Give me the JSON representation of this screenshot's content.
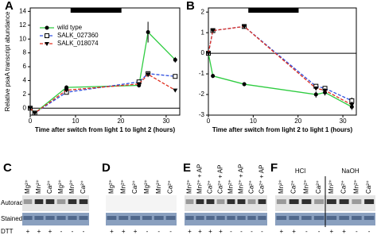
{
  "chart_data": [
    {
      "type": "line",
      "panel": "A",
      "ylabel": "Relative psaA transcript abundance",
      "xlabel": "Time after switch from light 1 to light 2 (hours)",
      "x": [
        0,
        1,
        8,
        24,
        26,
        32
      ],
      "xlim": [
        0,
        33
      ],
      "xticks": [
        0,
        10,
        20,
        30
      ],
      "ylim": [
        -1,
        14.5
      ],
      "yticks": [
        0,
        2,
        4,
        6,
        8,
        10,
        12,
        14
      ],
      "series": [
        {
          "name": "wild type",
          "color": "#2ecc40",
          "marker": "circle",
          "values": [
            0,
            -0.7,
            3,
            3.3,
            11,
            7
          ],
          "errors": [
            0.1,
            0.2,
            0.3,
            0.3,
            1.5,
            0.4
          ]
        },
        {
          "name": "SALK_027360",
          "color": "#3050e0",
          "marker": "square-open",
          "values": [
            0,
            -0.7,
            2.3,
            3.8,
            5,
            4.6
          ],
          "errors": [
            0.1,
            0.2,
            0.2,
            0.3,
            0.3,
            0.3
          ]
        },
        {
          "name": "SALK_018074",
          "color": "#e03020",
          "marker": "triangle",
          "values": [
            0,
            -0.7,
            2.6,
            3.5,
            4.9,
            2.6
          ],
          "errors": [
            0.1,
            0.2,
            0.2,
            0.3,
            0.4,
            0.2
          ]
        }
      ]
    },
    {
      "type": "line",
      "panel": "B",
      "xlabel": "Time after switch from light 2 to light 1 (hours)",
      "x": [
        0,
        1,
        8,
        24,
        26,
        32
      ],
      "xlim": [
        0,
        33
      ],
      "xticks": [
        0,
        10,
        20,
        30
      ],
      "ylim": [
        -3,
        2.2
      ],
      "yticks": [
        -3,
        -2,
        -1,
        0,
        1,
        2
      ],
      "series": [
        {
          "color": "#2ecc40",
          "marker": "circle",
          "values": [
            0,
            -1.1,
            -1.5,
            -2.0,
            -1.9,
            -2.6
          ],
          "errors": [
            0.05,
            0.1,
            0.1,
            0.15,
            0.15,
            0.15
          ]
        },
        {
          "color": "#3050e0",
          "marker": "square-open",
          "values": [
            0,
            1.1,
            1.3,
            -1.6,
            -1.7,
            -2.3
          ],
          "errors": [
            0.05,
            0.1,
            0.1,
            0.1,
            0.1,
            0.15
          ]
        },
        {
          "color": "#e03020",
          "marker": "triangle",
          "values": [
            0,
            1.1,
            1.3,
            -1.7,
            -1.8,
            -2.5
          ],
          "errors": [
            0.05,
            0.1,
            0.1,
            0.1,
            0.1,
            0.15
          ]
        }
      ]
    }
  ],
  "row_labels": [
    "Autorad",
    "Stained",
    "DTT"
  ],
  "gels": [
    {
      "panel": "C",
      "lanes": [
        "Mg²⁺",
        "Mn²⁺",
        "Ca²⁺",
        "Mg²⁺",
        "Mn²⁺",
        "Ca²⁺"
      ],
      "dtt": [
        "+",
        "+",
        "+",
        "-",
        "-",
        "-"
      ]
    },
    {
      "panel": "D",
      "lanes": [
        "Mg²⁺",
        "Mn²⁺",
        "Ca²⁺",
        "Mg²⁺",
        "Mn²⁺",
        "Ca²⁺"
      ],
      "dtt": [
        "+",
        "+",
        "+",
        "-",
        "-",
        "-"
      ]
    },
    {
      "panel": "E",
      "lanes": [
        "Mn²⁺",
        "Mn²⁺ + AP",
        "Ca²⁺",
        "Ca²⁺ + AP",
        "Mn²⁺",
        "Mn²⁺ + AP",
        "Ca²⁺",
        "Ca²⁺ + AP"
      ],
      "dtt": [
        "+",
        "+",
        "+",
        "+",
        "-",
        "-",
        "-",
        "-"
      ]
    },
    {
      "panel": "F",
      "groups": [
        "HCl",
        "NaOH"
      ],
      "lanes": [
        "Mn²⁺",
        "Ca²⁺",
        "Mn²⁺",
        "Ca²⁺",
        "Mn²⁺",
        "Ca²⁺",
        "Mn²⁺",
        "Ca²⁺"
      ],
      "dtt": [
        "+",
        "+",
        "-",
        "-",
        "+",
        "+",
        "-",
        "-"
      ]
    }
  ]
}
